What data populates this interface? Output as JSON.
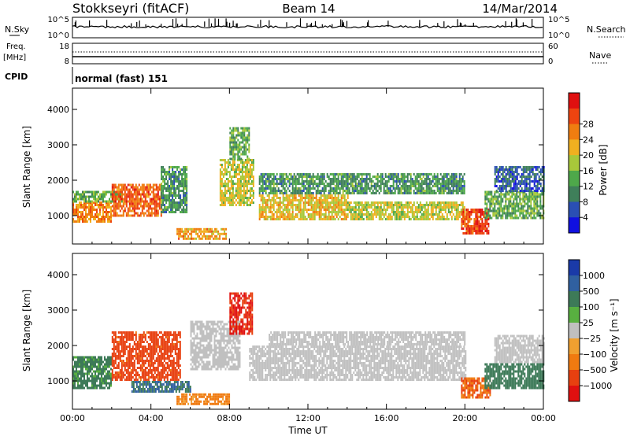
{
  "header": {
    "station": "Stokkseyri (fitACF)",
    "beam": "Beam 14",
    "date": "14/Mar/2014"
  },
  "housekeeping": {
    "nsky_label": "N.Sky",
    "nsky_ticks": [
      "10^5",
      "10^0"
    ],
    "nsearch_label": "N.Search",
    "nsearch_ticks": [
      "10^5",
      "10^0"
    ],
    "freq_label": "Freq.",
    "freq_unit": "[MHz]",
    "freq_ticks": [
      "18",
      "8"
    ],
    "nave_label": "Nave",
    "nave_ticks": [
      "60",
      "0"
    ],
    "cpid_label": "CPID",
    "cpid_value": "normal (fast) 151"
  },
  "colors": {
    "power": [
      "#1010e0",
      "#2a4fb4",
      "#3f7f5a",
      "#4ea84a",
      "#a8c83a",
      "#f0b020",
      "#f07d10",
      "#ee4410",
      "#e01010"
    ],
    "velocity": [
      "#1a3aa8",
      "#3060a0",
      "#3d7a58",
      "#58b040",
      "#c0c0c0",
      "#f0a030",
      "#f07a10",
      "#e84010",
      "#e01010"
    ]
  },
  "chart_data": [
    {
      "type": "heatmap",
      "name": "power",
      "ylabel": "Slant Range [km]",
      "ylim": [
        200,
        4600
      ],
      "xlim": [
        0,
        24
      ],
      "yticks": [
        "1000",
        "2000",
        "3000",
        "4000"
      ],
      "colorbar_label": "Power [dB]",
      "colorbar_ticks": [
        "4",
        "8",
        "12",
        "16",
        "20",
        "24",
        "28"
      ],
      "bands": [
        {
          "t0": 0.0,
          "t1": 2.0,
          "r0": 800,
          "r1": 1400,
          "v": 24
        },
        {
          "t0": 0.0,
          "t1": 2.5,
          "r0": 1400,
          "r1": 1700,
          "v": 14
        },
        {
          "t0": 2.0,
          "t1": 4.5,
          "r0": 1000,
          "r1": 1900,
          "v": 26
        },
        {
          "t0": 4.5,
          "t1": 5.8,
          "r0": 1100,
          "r1": 2400,
          "v": 12
        },
        {
          "t0": 5.3,
          "t1": 7.8,
          "r0": 350,
          "r1": 650,
          "v": 22
        },
        {
          "t0": 7.5,
          "t1": 9.2,
          "r0": 1300,
          "r1": 2600,
          "v": 18
        },
        {
          "t0": 8.0,
          "t1": 9.0,
          "r0": 2600,
          "r1": 3500,
          "v": 14
        },
        {
          "t0": 9.5,
          "t1": 14.0,
          "r0": 900,
          "r1": 1600,
          "v": 20
        },
        {
          "t0": 9.5,
          "t1": 20.0,
          "r0": 1600,
          "r1": 2200,
          "v": 12
        },
        {
          "t0": 14.0,
          "t1": 20.0,
          "r0": 900,
          "r1": 1400,
          "v": 18
        },
        {
          "t0": 19.8,
          "t1": 21.2,
          "r0": 500,
          "r1": 1200,
          "v": 28
        },
        {
          "t0": 21.0,
          "t1": 24.0,
          "r0": 900,
          "r1": 1700,
          "v": 14
        },
        {
          "t0": 21.5,
          "t1": 24.0,
          "r0": 1700,
          "r1": 2400,
          "v": 8
        }
      ]
    },
    {
      "type": "heatmap",
      "name": "velocity",
      "ylabel": "Slant Range [km]",
      "ylim": [
        200,
        4600
      ],
      "xlim": [
        0,
        24
      ],
      "xlabel": "Time UT",
      "xticks": [
        "00:00",
        "04:00",
        "08:00",
        "12:00",
        "16:00",
        "20:00",
        "00:00"
      ],
      "yticks": [
        "1000",
        "2000",
        "3000",
        "4000"
      ],
      "colorbar_label": "Velocity [m s⁻¹]",
      "colorbar_ticks": [
        "1000",
        "500",
        "100",
        "25",
        "−25",
        "−100",
        "−500",
        "−1000"
      ],
      "bands": [
        {
          "t0": 0.0,
          "t1": 2.0,
          "r0": 800,
          "r1": 1700,
          "v": 100
        },
        {
          "t0": 2.0,
          "t1": 5.5,
          "r0": 1000,
          "r1": 2400,
          "v": -500
        },
        {
          "t0": 3.0,
          "t1": 6.0,
          "r0": 700,
          "r1": 1000,
          "v": 300
        },
        {
          "t0": 5.3,
          "t1": 8.0,
          "r0": 350,
          "r1": 650,
          "v": -100
        },
        {
          "t0": 6.0,
          "t1": 8.5,
          "r0": 1300,
          "r1": 2700,
          "v": 0
        },
        {
          "t0": 8.0,
          "t1": 9.2,
          "r0": 2300,
          "r1": 3500,
          "v": -800
        },
        {
          "t0": 9.0,
          "t1": 20.0,
          "r0": 1000,
          "r1": 2000,
          "v": 0
        },
        {
          "t0": 10.0,
          "t1": 20.0,
          "r0": 2000,
          "r1": 2400,
          "v": 0
        },
        {
          "t0": 19.8,
          "t1": 21.3,
          "r0": 500,
          "r1": 1100,
          "v": -300
        },
        {
          "t0": 21.0,
          "t1": 24.0,
          "r0": 800,
          "r1": 1500,
          "v": 200
        },
        {
          "t0": 21.5,
          "t1": 24.0,
          "r0": 1500,
          "r1": 2300,
          "v": 0
        }
      ]
    }
  ]
}
